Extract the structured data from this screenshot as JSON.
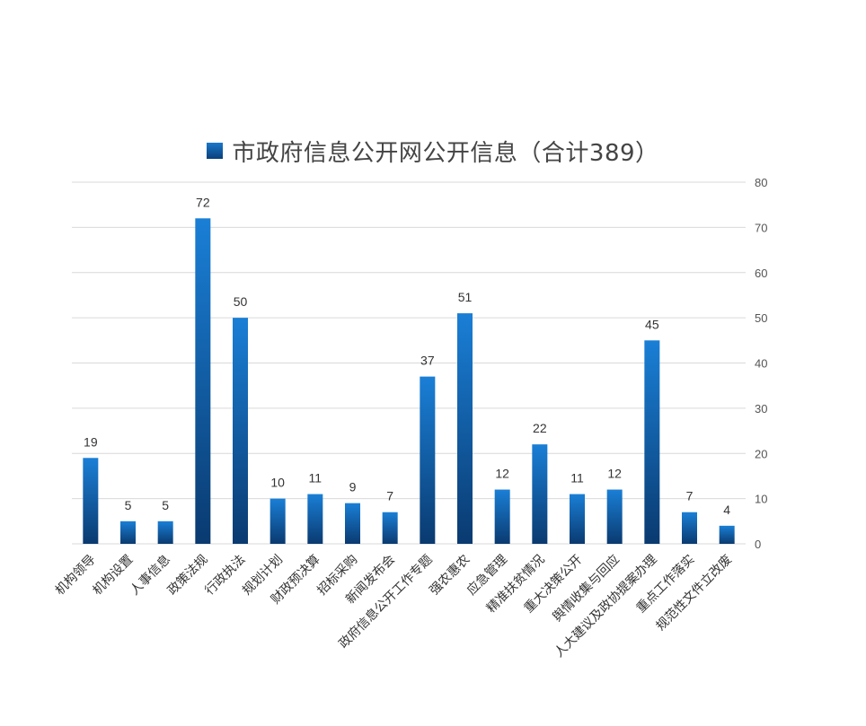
{
  "chart_data": {
    "type": "bar",
    "title": "市政府信息公开网公开信息（合计389）",
    "legend": {
      "position": "top",
      "entries": [
        {
          "name": "市政府信息公开网公开信息（合计389）",
          "color": "#0d5fae"
        }
      ]
    },
    "categories": [
      "机构领导",
      "机构设置",
      "人事信息",
      "政策法规",
      "行政执法",
      "规划计划",
      "财政预决算",
      "招标采购",
      "新闻发布会",
      "政府信息公开工作专题",
      "强农惠农",
      "应急管理",
      "精准扶贫情况",
      "重大决策公开",
      "舆情收集与回应",
      "人大建议及政协提案办理",
      "重点工作落实",
      "规范性文件立改废"
    ],
    "series": [
      {
        "name": "市政府信息公开网公开信息（合计389）",
        "values": [
          19,
          5,
          5,
          72,
          50,
          10,
          11,
          9,
          7,
          37,
          51,
          12,
          22,
          11,
          12,
          45,
          7,
          4
        ]
      }
    ],
    "ylim": [
      0,
      80
    ],
    "yticks": [
      0,
      10,
      20,
      30,
      40,
      50,
      60,
      70,
      80
    ],
    "y_axis_side": "right",
    "grid": true,
    "bar_color_top": "#1a7fd6",
    "bar_color_bottom": "#0a3a70"
  }
}
